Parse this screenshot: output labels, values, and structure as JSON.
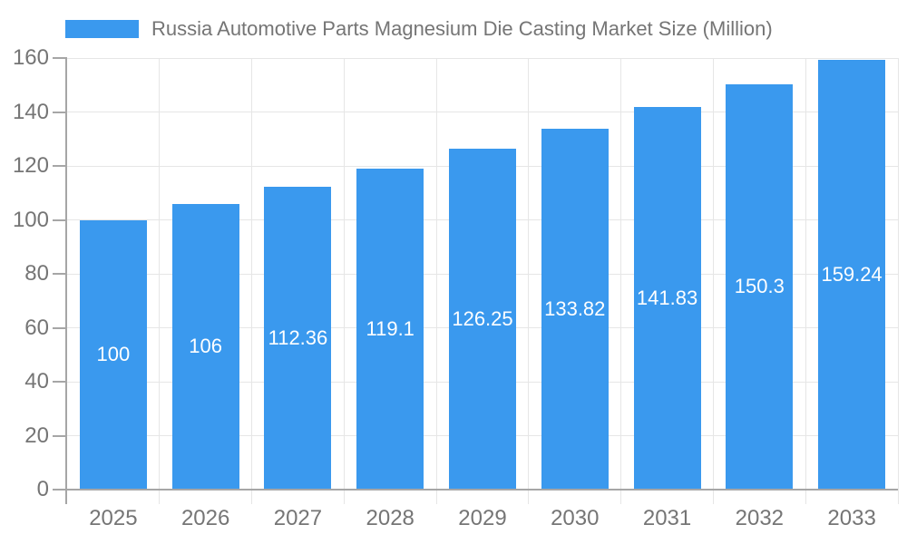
{
  "legend": {
    "label": "Russia Automotive Parts Magnesium Die Casting Market Size (Million)",
    "swatch_color": "#3A99EE"
  },
  "chart_data": {
    "type": "bar",
    "title": "Russia Automotive Parts Magnesium Die Casting Market Size (Million)",
    "categories": [
      "2025",
      "2026",
      "2027",
      "2028",
      "2029",
      "2030",
      "2031",
      "2032",
      "2033"
    ],
    "series": [
      {
        "name": "Russia Automotive Parts Magnesium Die Casting Market Size (Million)",
        "values": [
          100,
          106,
          112.36,
          119.1,
          126.25,
          133.82,
          141.83,
          150.3,
          159.24
        ]
      }
    ],
    "value_labels": [
      "100",
      "106",
      "112.36",
      "119.1",
      "126.25",
      "133.82",
      "141.83",
      "150.3",
      "159.24"
    ],
    "xlabel": "",
    "ylabel": "",
    "ylim": [
      0,
      160
    ],
    "yticks": [
      0,
      20,
      40,
      60,
      80,
      100,
      120,
      140,
      160
    ],
    "grid": true,
    "legend_position": "top"
  },
  "colors": {
    "bar": "#3A99EE",
    "grid": "#E6E6E6",
    "axis": "#A6A6A6",
    "text": "#757575",
    "value_label": "#FFFFFF",
    "background": "#FFFFFF"
  }
}
